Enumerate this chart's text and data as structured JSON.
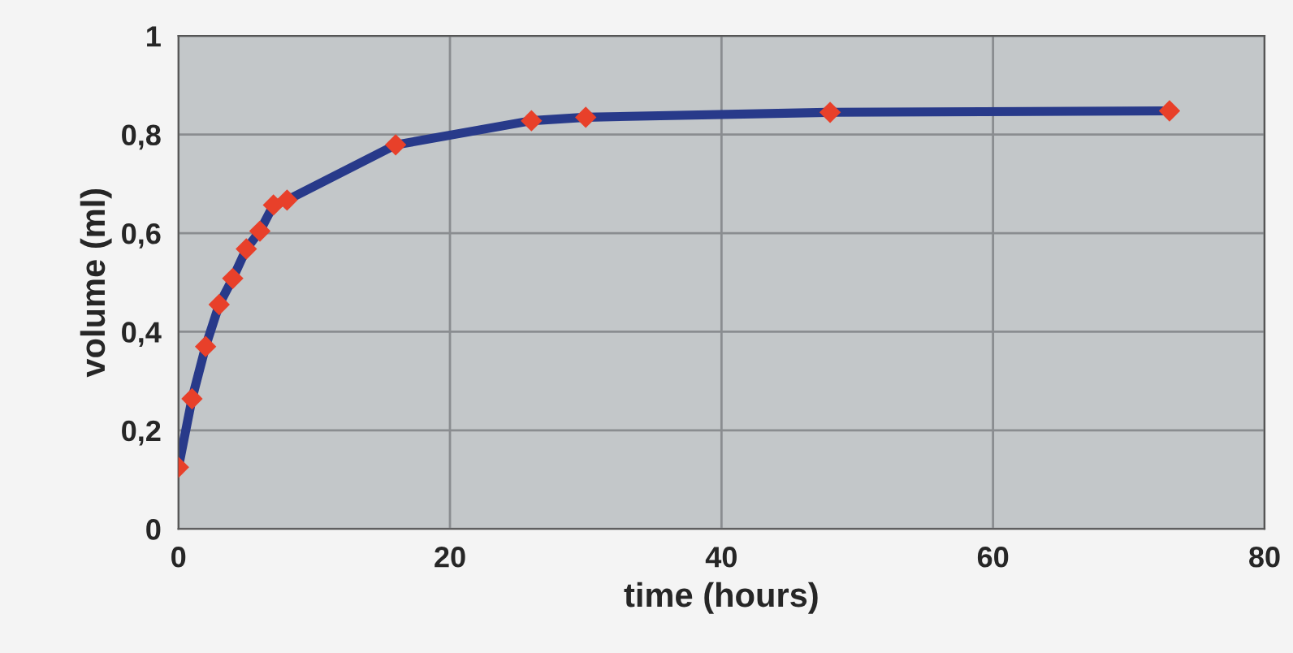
{
  "chart_data": {
    "type": "line",
    "xlabel": "time (hours)",
    "ylabel": "volume (ml)",
    "x": [
      0,
      1,
      2,
      3,
      4,
      5,
      6,
      7,
      8,
      16,
      26,
      30,
      48,
      73
    ],
    "series": [
      {
        "color": "#283a8a",
        "colors": [
          "#e8402a",
          "#e8402a",
          "#e8402a",
          "#e8402a",
          "#e8402a",
          "#e8402a",
          "#e8402a",
          "#e8402a",
          "#e8402a",
          "#e8402a",
          "#e8402a",
          "#e8402a",
          "#e8402a",
          "#e8402a"
        ],
        "values": [
          0.125,
          0.264,
          0.37,
          0.455,
          0.508,
          0.568,
          0.604,
          0.657,
          0.667,
          0.779,
          0.828,
          0.835,
          0.845,
          0.848
        ]
      }
    ],
    "marker": "diamond",
    "line_style": "solid",
    "grid": true,
    "xlim": [
      0,
      80
    ],
    "xticks": [
      0,
      20,
      40,
      60,
      80
    ],
    "ylim": [
      0,
      1
    ],
    "yticks": [
      0,
      {
        "value": 0.2,
        "label": "0,2"
      },
      {
        "value": 0.4,
        "label": "0,4"
      },
      {
        "value": 0.6,
        "label": "0,6"
      },
      {
        "value": 0.8,
        "label": "0,8"
      },
      1
    ]
  }
}
